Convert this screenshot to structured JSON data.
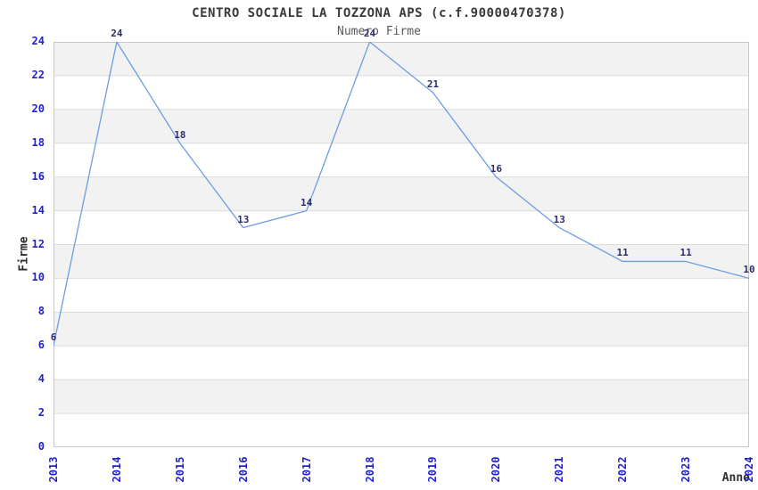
{
  "chart_data": {
    "type": "line",
    "title": "CENTRO SOCIALE LA TOZZONA APS (c.f.90000470378)",
    "subtitle": "Numero Firme",
    "xlabel": "Anno",
    "ylabel": "Firme",
    "categories": [
      "2013",
      "2014",
      "2015",
      "2016",
      "2017",
      "2018",
      "2019",
      "2020",
      "2021",
      "2022",
      "2023",
      "2024"
    ],
    "values": [
      6,
      24,
      18,
      13,
      14,
      24,
      21,
      16,
      13,
      11,
      11,
      10
    ],
    "ylim": [
      0,
      24
    ],
    "ytick_step": 2,
    "grid": "horizontal-bands",
    "legend": "none",
    "point_labels_visible": true,
    "colors": {
      "line": "#6d9ce3",
      "tick_label": "#2222cc",
      "data_label": "#2d2d6b",
      "band": "#f2f2f2",
      "gridline": "#dcdcdc",
      "border": "#c8c8c8",
      "title": "#3a3a3a",
      "subtitle": "#5a5a5a",
      "axis_title": "#2e2e2e",
      "background": "#ffffff"
    }
  }
}
